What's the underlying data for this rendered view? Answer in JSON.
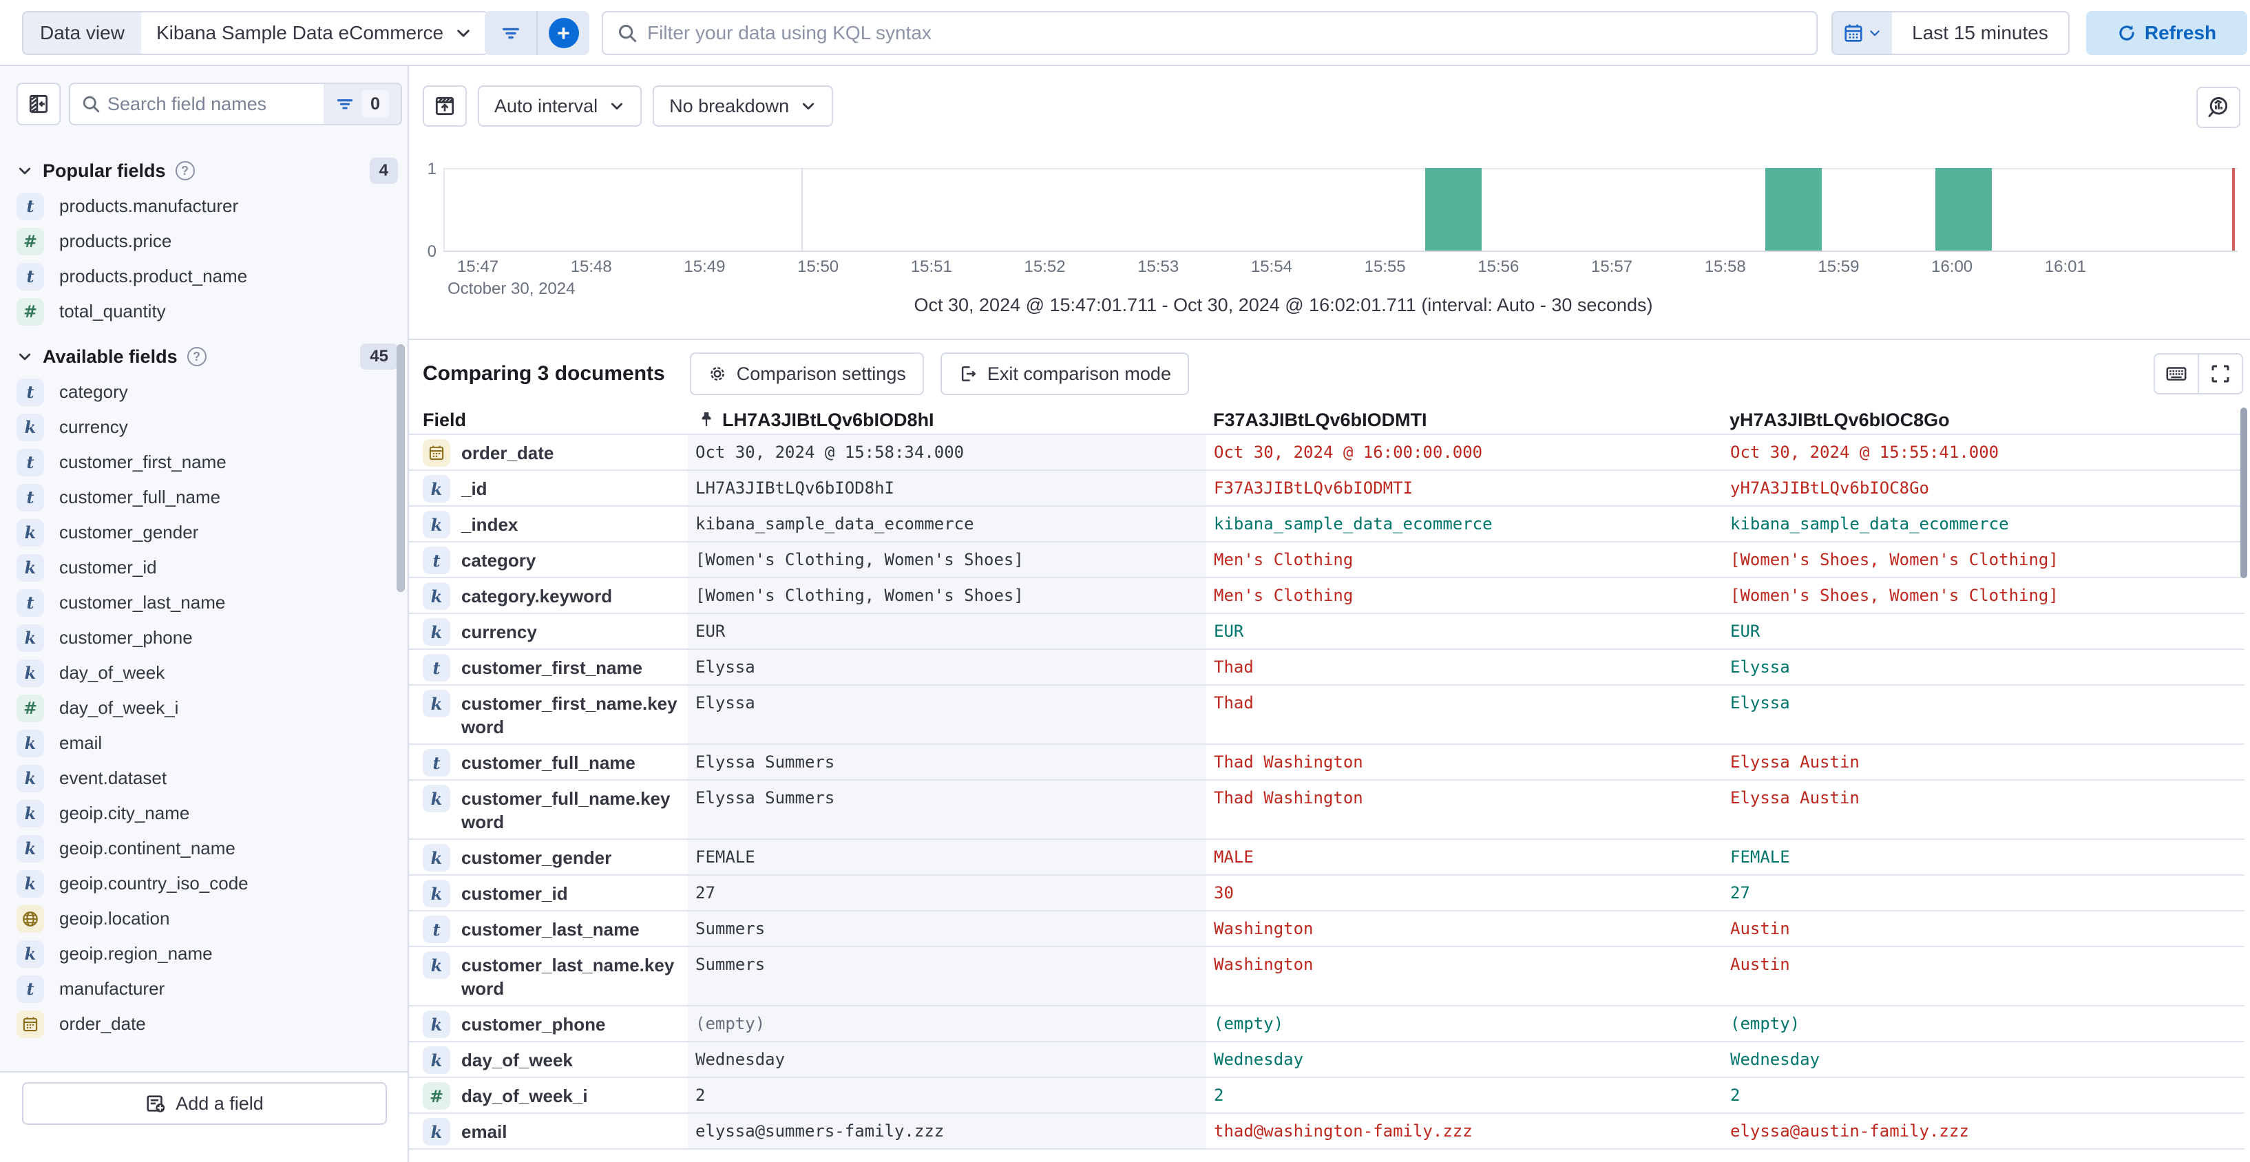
{
  "header": {
    "data_view_label": "Data view",
    "data_view_value": "Kibana Sample Data eCommerce",
    "kql_placeholder": "Filter your data using KQL syntax",
    "time_range": "Last 15 minutes",
    "refresh_label": "Refresh"
  },
  "sidebar": {
    "search_placeholder": "Search field names",
    "filter_count": "0",
    "popular": {
      "title": "Popular fields",
      "count": "4",
      "items": [
        {
          "name": "products.manufacturer",
          "type": "text"
        },
        {
          "name": "products.price",
          "type": "number"
        },
        {
          "name": "products.product_name",
          "type": "text"
        },
        {
          "name": "total_quantity",
          "type": "number"
        }
      ]
    },
    "available": {
      "title": "Available fields",
      "count": "45",
      "items": [
        {
          "name": "category",
          "type": "text"
        },
        {
          "name": "currency",
          "type": "keyword"
        },
        {
          "name": "customer_first_name",
          "type": "text"
        },
        {
          "name": "customer_full_name",
          "type": "text"
        },
        {
          "name": "customer_gender",
          "type": "keyword"
        },
        {
          "name": "customer_id",
          "type": "keyword"
        },
        {
          "name": "customer_last_name",
          "type": "text"
        },
        {
          "name": "customer_phone",
          "type": "keyword"
        },
        {
          "name": "day_of_week",
          "type": "keyword"
        },
        {
          "name": "day_of_week_i",
          "type": "number"
        },
        {
          "name": "email",
          "type": "keyword"
        },
        {
          "name": "event.dataset",
          "type": "keyword"
        },
        {
          "name": "geoip.city_name",
          "type": "keyword"
        },
        {
          "name": "geoip.continent_name",
          "type": "keyword"
        },
        {
          "name": "geoip.country_iso_code",
          "type": "keyword"
        },
        {
          "name": "geoip.location",
          "type": "geo"
        },
        {
          "name": "geoip.region_name",
          "type": "keyword"
        },
        {
          "name": "manufacturer",
          "type": "text"
        },
        {
          "name": "order_date",
          "type": "date"
        }
      ]
    },
    "add_field_label": "Add a field"
  },
  "chart": {
    "interval_label": "Auto interval",
    "breakdown_label": "No breakdown",
    "range_summary": "Oct 30, 2024 @ 15:47:01.711 - Oct 30, 2024 @ 16:02:01.711 (interval: Auto - 30 seconds)"
  },
  "chart_data": {
    "type": "bar",
    "x_ticks": [
      "15:47",
      "15:48",
      "15:49",
      "15:50",
      "15:51",
      "15:52",
      "15:53",
      "15:54",
      "15:55",
      "15:56",
      "15:57",
      "15:58",
      "15:59",
      "16:00",
      "16:01"
    ],
    "x_start": "15:47:00",
    "x_date_label": "October 30, 2024",
    "y_ticks": [
      "1",
      "0"
    ],
    "ylim": [
      0,
      1
    ],
    "interval": "30 seconds",
    "gridlines_x": [
      "15:50",
      "16:00"
    ],
    "buckets": [
      {
        "time": "15:55:30",
        "count": 1
      },
      {
        "time": "15:58:30",
        "count": 1
      },
      {
        "time": "16:00:00",
        "count": 1
      }
    ],
    "bar_color": "#54b399",
    "current_time_marker": true
  },
  "comparison": {
    "title": "Comparing 3 documents",
    "settings_label": "Comparison settings",
    "exit_label": "Exit comparison mode"
  },
  "table": {
    "field_label": "Field",
    "doc_headers": [
      "LH7A3JIBtLQv6bIOD8hI",
      "F37A3JIBtLQv6bIODMTI",
      "yH7A3JIBtLQv6bIOC8Go"
    ],
    "rows": [
      {
        "field": "order_date",
        "type": "date",
        "base": "Oct 30, 2024 @ 15:58:34.000",
        "docs": [
          {
            "v": "Oct 30, 2024 @ 16:00:00.000",
            "s": "diff"
          },
          {
            "v": "Oct 30, 2024 @ 15:55:41.000",
            "s": "diff"
          }
        ]
      },
      {
        "field": "_id",
        "type": "keyword",
        "base": "LH7A3JIBtLQv6bIOD8hI",
        "docs": [
          {
            "v": "F37A3JIBtLQv6bIODMTI",
            "s": "diff"
          },
          {
            "v": "yH7A3JIBtLQv6bIOC8Go",
            "s": "diff"
          }
        ]
      },
      {
        "field": "_index",
        "type": "keyword",
        "base": "kibana_sample_data_ecommerce",
        "docs": [
          {
            "v": "kibana_sample_data_ecommerce",
            "s": "match"
          },
          {
            "v": "kibana_sample_data_ecommerce",
            "s": "match"
          }
        ]
      },
      {
        "field": "category",
        "type": "text",
        "base": "[Women's Clothing, Women's Shoes]",
        "docs": [
          {
            "v": "Men's Clothing",
            "s": "diff"
          },
          {
            "v": "[Women's Shoes, Women's Clothing]",
            "s": "diff"
          }
        ]
      },
      {
        "field": "category.keyword",
        "type": "keyword",
        "base": "[Women's Clothing, Women's Shoes]",
        "docs": [
          {
            "v": "Men's Clothing",
            "s": "diff"
          },
          {
            "v": "[Women's Shoes, Women's Clothing]",
            "s": "diff"
          }
        ]
      },
      {
        "field": "currency",
        "type": "keyword",
        "base": "EUR",
        "docs": [
          {
            "v": "EUR",
            "s": "match"
          },
          {
            "v": "EUR",
            "s": "match"
          }
        ]
      },
      {
        "field": "customer_first_name",
        "type": "text",
        "base": "Elyssa",
        "docs": [
          {
            "v": "Thad",
            "s": "diff"
          },
          {
            "v": "Elyssa",
            "s": "match"
          }
        ]
      },
      {
        "field": "customer_first_name.keyword",
        "type": "keyword",
        "tall": true,
        "base": "Elyssa",
        "docs": [
          {
            "v": "Thad",
            "s": "diff"
          },
          {
            "v": "Elyssa",
            "s": "match"
          }
        ]
      },
      {
        "field": "customer_full_name",
        "type": "text",
        "base": "Elyssa Summers",
        "docs": [
          {
            "v": "Thad Washington",
            "s": "diff"
          },
          {
            "v": "Elyssa Austin",
            "s": "diff"
          }
        ]
      },
      {
        "field": "customer_full_name.keyword",
        "type": "keyword",
        "tall": true,
        "base": "Elyssa Summers",
        "docs": [
          {
            "v": "Thad Washington",
            "s": "diff"
          },
          {
            "v": "Elyssa Austin",
            "s": "diff"
          }
        ]
      },
      {
        "field": "customer_gender",
        "type": "keyword",
        "base": "FEMALE",
        "docs": [
          {
            "v": "MALE",
            "s": "diff"
          },
          {
            "v": "FEMALE",
            "s": "match"
          }
        ]
      },
      {
        "field": "customer_id",
        "type": "keyword",
        "base": "27",
        "docs": [
          {
            "v": "30",
            "s": "diff"
          },
          {
            "v": "27",
            "s": "match"
          }
        ]
      },
      {
        "field": "customer_last_name",
        "type": "text",
        "base": "Summers",
        "docs": [
          {
            "v": "Washington",
            "s": "diff"
          },
          {
            "v": "Austin",
            "s": "diff"
          }
        ]
      },
      {
        "field": "customer_last_name.keyword",
        "type": "keyword",
        "tall": true,
        "base": "Summers",
        "docs": [
          {
            "v": "Washington",
            "s": "diff"
          },
          {
            "v": "Austin",
            "s": "diff"
          }
        ]
      },
      {
        "field": "customer_phone",
        "type": "keyword",
        "base": "(empty)",
        "base_empty": true,
        "docs": [
          {
            "v": "(empty)",
            "s": "match"
          },
          {
            "v": "(empty)",
            "s": "match"
          }
        ]
      },
      {
        "field": "day_of_week",
        "type": "keyword",
        "base": "Wednesday",
        "docs": [
          {
            "v": "Wednesday",
            "s": "match"
          },
          {
            "v": "Wednesday",
            "s": "match"
          }
        ]
      },
      {
        "field": "day_of_week_i",
        "type": "number",
        "base": "2",
        "docs": [
          {
            "v": "2",
            "s": "match"
          },
          {
            "v": "2",
            "s": "match"
          }
        ]
      },
      {
        "field": "email",
        "type": "keyword",
        "base": "elyssa@summers-family.zzz",
        "docs": [
          {
            "v": "thad@washington-family.zzz",
            "s": "diff"
          },
          {
            "v": "elyssa@austin-family.zzz",
            "s": "diff"
          }
        ]
      }
    ]
  },
  "icons": {
    "search": "magnifier-icon",
    "filter": "filter-lines-icon",
    "add_filter": "plus-circle-icon",
    "calendar": "calendar-icon",
    "chevron": "chevron-down-icon",
    "refresh": "refresh-icon",
    "collapse_sidebar": "collapse-panel-icon",
    "hide_chart": "hide-chart-icon",
    "explore_lens": "lens-magnifier-chart-icon",
    "settings": "gear-icon",
    "exit": "exit-door-icon",
    "keyboard": "keyboard-icon",
    "fullscreen": "fullscreen-icon",
    "pin": "pin-icon",
    "help": "question-circle-icon",
    "add_field": "add-document-icon"
  },
  "colors": {
    "accent_blue": "#0b6bd7",
    "refresh_bg": "#cfe6f8",
    "refresh_text": "#0b64c0",
    "diff_red": "#bd271e",
    "match_teal": "#00756b",
    "bar_green": "#54b399",
    "time_marker_red": "#ce635e",
    "base_column_bg": "#f4f6fa",
    "sidebar_bg": "#f7f8fc",
    "border": "#d3dae6"
  }
}
